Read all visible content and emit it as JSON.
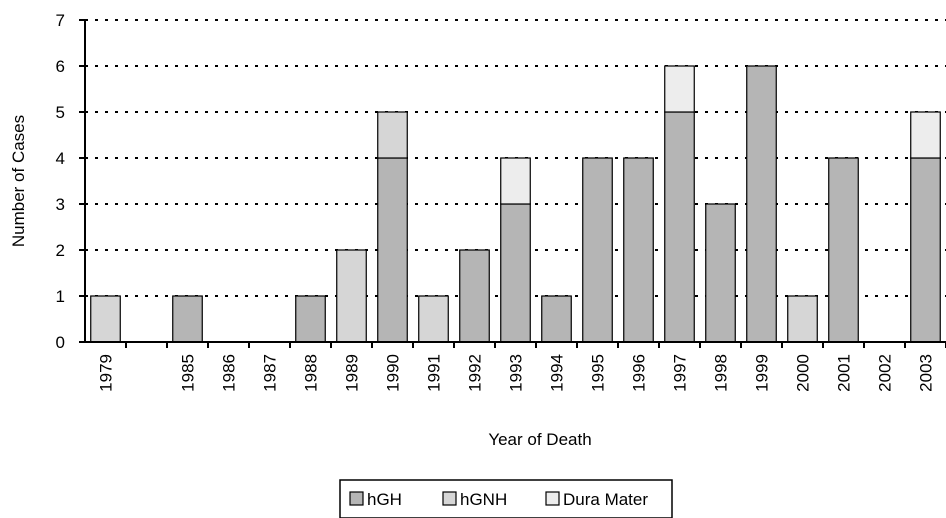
{
  "chart_data": {
    "type": "stacked-bar",
    "x_label": "Year of Death",
    "y_label": "Number of Cases",
    "categories": [
      "1979",
      null,
      "1985",
      "1986",
      "1987",
      "1988",
      "1989",
      "1990",
      "1991",
      "1992",
      "1993",
      "1994",
      "1995",
      "1996",
      "1997",
      "1998",
      "1999",
      "2000",
      "2001",
      "2002",
      "2003"
    ],
    "series": [
      {
        "name": "hGH",
        "color": "#b5b5b5",
        "values": [
          0,
          0,
          1,
          0,
          0,
          1,
          0,
          4,
          0,
          2,
          3,
          1,
          4,
          4,
          5,
          3,
          6,
          0,
          4,
          0,
          4
        ]
      },
      {
        "name": "hGNH",
        "color": "#d6d6d6",
        "values": [
          1,
          0,
          0,
          0,
          0,
          0,
          2,
          1,
          1,
          0,
          0,
          0,
          0,
          0,
          0,
          0,
          0,
          1,
          0,
          0,
          0
        ]
      },
      {
        "name": "Dura Mater",
        "color": "#ededed",
        "values": [
          0,
          0,
          0,
          0,
          0,
          0,
          0,
          0,
          0,
          0,
          1,
          0,
          0,
          0,
          1,
          0,
          0,
          0,
          0,
          0,
          1
        ]
      }
    ],
    "ylim": [
      0,
      7
    ],
    "yticks": [
      0,
      1,
      2,
      3,
      4,
      5,
      6,
      7
    ],
    "grid": true
  }
}
